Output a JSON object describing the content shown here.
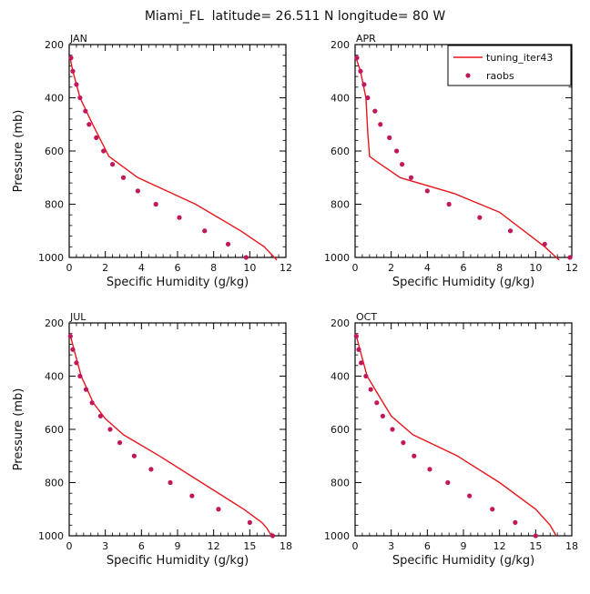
{
  "chart_data": {
    "type": "line",
    "title": "Miami_FL  latitude= 26.511 N longitude= 80 W",
    "legend": {
      "placement": "top-right",
      "entries": [
        {
          "name": "tuning_iter43",
          "style": "line",
          "color": "#e8161c"
        },
        {
          "name": "raobs",
          "style": "marker",
          "color": "#c2185b"
        }
      ]
    },
    "panels": [
      {
        "name": "JAN",
        "xlabel": "Specific Humidity (g/kg)",
        "ylabel": "Pressure (mb)",
        "xlim": [
          0,
          12
        ],
        "ylim": [
          1000,
          200
        ],
        "xticks": [
          0,
          2,
          4,
          6,
          8,
          10,
          12
        ],
        "yticks": [
          200,
          400,
          600,
          800,
          1000
        ],
        "model": {
          "x": [
            0.05,
            0.2,
            0.6,
            1.3,
            2.2,
            3.8,
            7.0,
            9.5,
            10.8,
            11.5
          ],
          "p": [
            250,
            300,
            400,
            500,
            620,
            700,
            800,
            900,
            960,
            1010
          ]
        },
        "raobs": {
          "x": [
            0.1,
            0.2,
            0.4,
            0.6,
            0.9,
            1.1,
            1.5,
            1.9,
            2.4,
            3.0,
            3.8,
            4.8,
            6.1,
            7.5,
            8.8,
            9.8
          ],
          "p": [
            250,
            300,
            350,
            400,
            450,
            500,
            550,
            600,
            650,
            700,
            750,
            800,
            850,
            900,
            950,
            1000
          ]
        }
      },
      {
        "name": "APR",
        "xlabel": "Specific Humidity (g/kg)",
        "ylabel": "",
        "xlim": [
          0,
          12
        ],
        "ylim": [
          1000,
          200
        ],
        "xticks": [
          0,
          2,
          4,
          6,
          8,
          10,
          12
        ],
        "yticks": [
          200,
          400,
          600,
          800,
          1000
        ],
        "model": {
          "x": [
            0.05,
            0.3,
            0.6,
            0.7,
            0.8,
            1.2,
            2.5,
            5.5,
            8.0,
            10.5,
            11.3
          ],
          "p": [
            250,
            300,
            400,
            530,
            620,
            640,
            700,
            760,
            830,
            960,
            1010
          ]
        },
        "raobs": {
          "x": [
            0.1,
            0.3,
            0.5,
            0.7,
            1.1,
            1.4,
            1.9,
            2.3,
            2.6,
            3.1,
            4.0,
            5.2,
            6.9,
            8.6,
            10.5,
            11.9
          ],
          "p": [
            250,
            300,
            350,
            400,
            450,
            500,
            550,
            600,
            650,
            700,
            750,
            800,
            850,
            900,
            950,
            1000
          ]
        }
      },
      {
        "name": "JUL",
        "xlabel": "Specific Humidity (g/kg)",
        "ylabel": "Pressure (mb)",
        "xlim": [
          0,
          18
        ],
        "ylim": [
          1000,
          200
        ],
        "xticks": [
          0,
          3,
          6,
          9,
          12,
          15,
          18
        ],
        "yticks": [
          200,
          400,
          600,
          800,
          1000
        ],
        "model": {
          "x": [
            0.05,
            0.4,
            1.0,
            2.0,
            3.0,
            4.5,
            7.5,
            11.0,
            14.5,
            16.0,
            16.4,
            16.8
          ],
          "p": [
            240,
            300,
            400,
            500,
            560,
            620,
            700,
            800,
            900,
            950,
            970,
            1000
          ]
        },
        "raobs": {
          "x": [
            0.1,
            0.3,
            0.6,
            0.9,
            1.4,
            1.9,
            2.6,
            3.4,
            4.2,
            5.4,
            6.8,
            8.4,
            10.2,
            12.4,
            15.0,
            16.9
          ],
          "p": [
            250,
            300,
            350,
            400,
            450,
            500,
            550,
            600,
            650,
            700,
            750,
            800,
            850,
            900,
            950,
            1000
          ]
        }
      },
      {
        "name": "OCT",
        "xlabel": "Specific Humidity (g/kg)",
        "ylabel": "",
        "xlim": [
          0,
          18
        ],
        "ylim": [
          1000,
          200
        ],
        "xticks": [
          0,
          3,
          6,
          9,
          12,
          15,
          18
        ],
        "yticks": [
          200,
          400,
          600,
          800,
          1000
        ],
        "model": {
          "x": [
            0.05,
            0.4,
            1.0,
            1.8,
            3.0,
            4.8,
            8.5,
            12.0,
            15.0,
            16.2,
            16.7
          ],
          "p": [
            240,
            300,
            400,
            460,
            550,
            620,
            700,
            800,
            900,
            960,
            1000
          ]
        },
        "raobs": {
          "x": [
            0.1,
            0.3,
            0.5,
            0.9,
            1.3,
            1.8,
            2.3,
            3.1,
            4.0,
            4.9,
            6.2,
            7.7,
            9.5,
            11.4,
            13.3,
            15.0
          ],
          "p": [
            250,
            300,
            350,
            400,
            450,
            500,
            550,
            600,
            650,
            700,
            750,
            800,
            850,
            900,
            950,
            1000
          ]
        }
      }
    ]
  }
}
